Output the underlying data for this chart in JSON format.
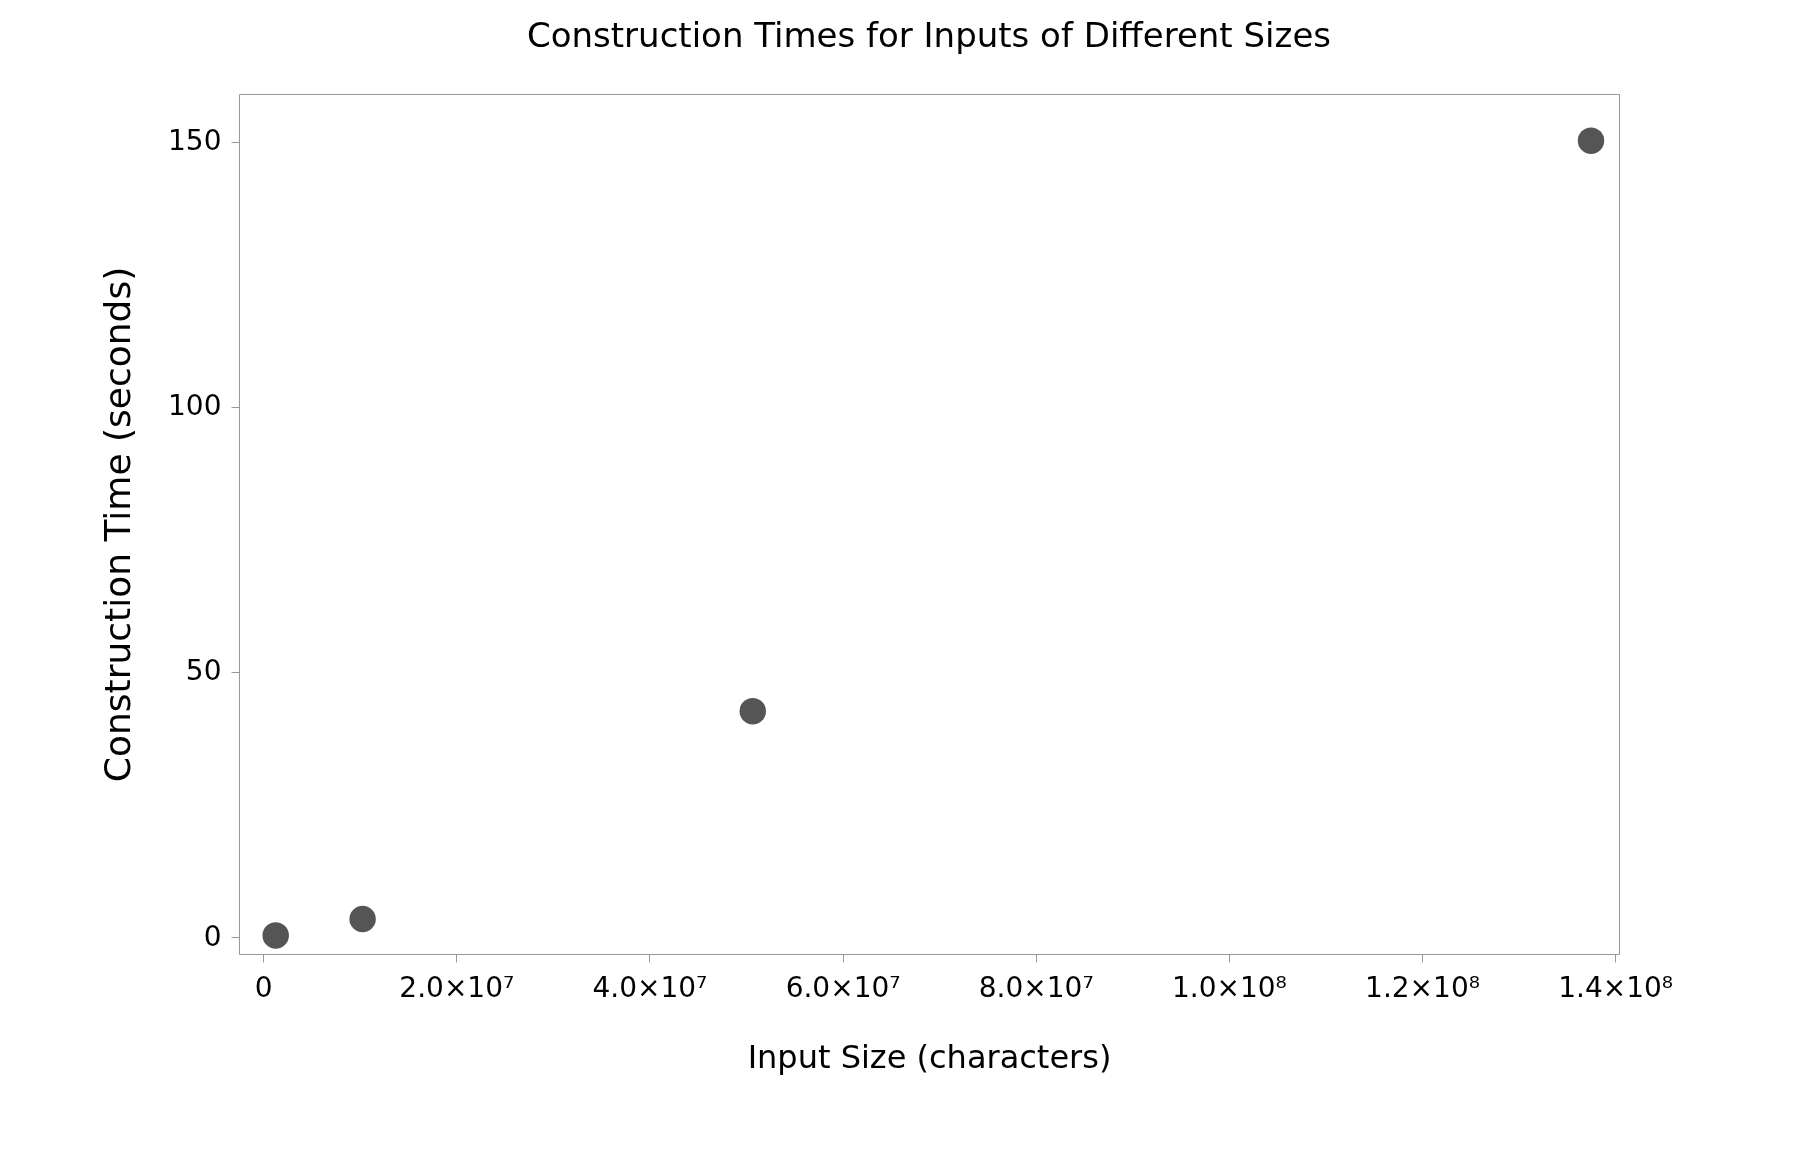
{
  "chart_data": {
    "type": "scatter",
    "title": "Construction Times for Inputs of Different Sizes",
    "xlabel": "Input Size (characters)",
    "ylabel": "Construction Time (seconds)",
    "x": [
      1300000,
      10300000,
      50700000,
      137500000
    ],
    "series": [
      {
        "color": "#555555",
        "values": [
          0.3,
          3.4,
          42.6,
          150.2
        ]
      }
    ],
    "xlim": [
      -2500000,
      140400000
    ],
    "xticks": [
      0,
      {
        "value": 20000000,
        "label": "2.0×10⁷"
      },
      {
        "value": 40000000,
        "label": "4.0×10⁷"
      },
      {
        "value": 60000000,
        "label": "6.0×10⁷"
      },
      {
        "value": 80000000,
        "label": "8.0×10⁷"
      },
      {
        "value": 100000000,
        "label": "1.0×10⁸"
      },
      {
        "value": 120000000,
        "label": "1.2×10⁸"
      },
      {
        "value": 140000000,
        "label": "1.4×10⁸"
      }
    ],
    "ylim": [
      -3.2,
      159
    ],
    "yticks": [
      0,
      50,
      100,
      150
    ],
    "grid": false,
    "legend": false,
    "marker": "circle"
  }
}
